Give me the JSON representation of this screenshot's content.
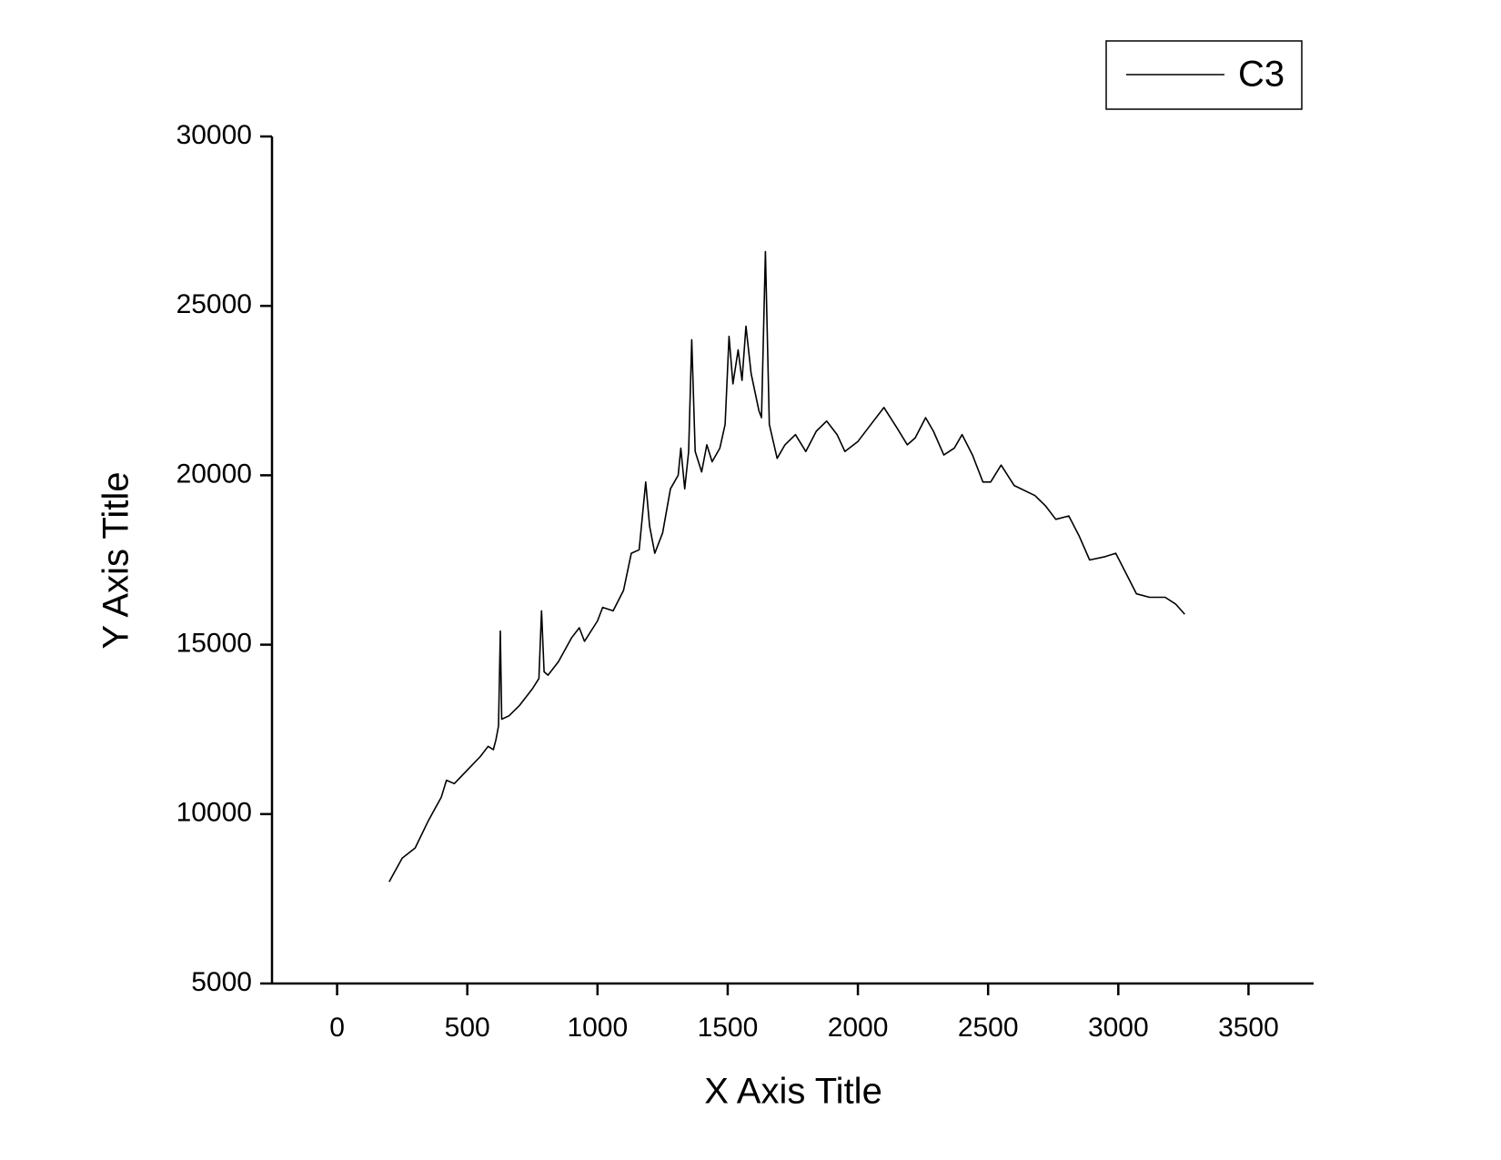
{
  "chart_data": {
    "type": "line",
    "xlabel": "X Axis Title",
    "ylabel": "Y Axis Title",
    "xlim": [
      -250,
      3750
    ],
    "ylim": [
      5000,
      30000
    ],
    "xticks": [
      0,
      500,
      1000,
      1500,
      2000,
      2500,
      3000,
      3500
    ],
    "yticks": [
      5000,
      10000,
      15000,
      20000,
      25000,
      30000
    ],
    "legend": "upper right",
    "series": [
      {
        "name": "C3",
        "color": "#000000",
        "x": [
          200,
          250,
          300,
          350,
          400,
          420,
          450,
          500,
          550,
          580,
          600,
          610,
          620,
          627,
          632,
          660,
          700,
          750,
          775,
          785,
          795,
          810,
          850,
          900,
          930,
          950,
          1000,
          1020,
          1060,
          1100,
          1130,
          1160,
          1185,
          1200,
          1220,
          1250,
          1280,
          1310,
          1320,
          1335,
          1350,
          1362,
          1375,
          1400,
          1420,
          1440,
          1470,
          1490,
          1505,
          1520,
          1540,
          1555,
          1570,
          1590,
          1620,
          1630,
          1645,
          1660,
          1690,
          1720,
          1760,
          1800,
          1840,
          1880,
          1920,
          1950,
          2000,
          2060,
          2100,
          2150,
          2190,
          2220,
          2260,
          2290,
          2330,
          2370,
          2400,
          2440,
          2480,
          2510,
          2550,
          2600,
          2680,
          2720,
          2760,
          2810,
          2850,
          2890,
          2950,
          2990,
          3030,
          3070,
          3120,
          3180,
          3220,
          3255
        ],
        "values": [
          8000,
          8700,
          9000,
          9800,
          10500,
          11000,
          10900,
          11300,
          11700,
          12000,
          11900,
          12200,
          12600,
          15400,
          12800,
          12900,
          13200,
          13700,
          14000,
          16000,
          14200,
          14100,
          14500,
          15200,
          15500,
          15100,
          15700,
          16100,
          16000,
          16600,
          17700,
          17800,
          19800,
          18500,
          17700,
          18300,
          19600,
          20000,
          20800,
          19600,
          20700,
          24000,
          20700,
          20100,
          20900,
          20400,
          20800,
          21500,
          24100,
          22700,
          23700,
          22800,
          24400,
          23000,
          21900,
          21700,
          26600,
          21500,
          20500,
          20900,
          21200,
          20700,
          21300,
          21600,
          21200,
          20700,
          21000,
          21600,
          22000,
          21400,
          20900,
          21100,
          21700,
          21300,
          20600,
          20800,
          21200,
          20600,
          19800,
          19800,
          20300,
          19700,
          19400,
          19100,
          18700,
          18800,
          18200,
          17500,
          17600,
          17700,
          17100,
          16500,
          16400,
          16400,
          16200,
          15900
        ]
      }
    ]
  }
}
